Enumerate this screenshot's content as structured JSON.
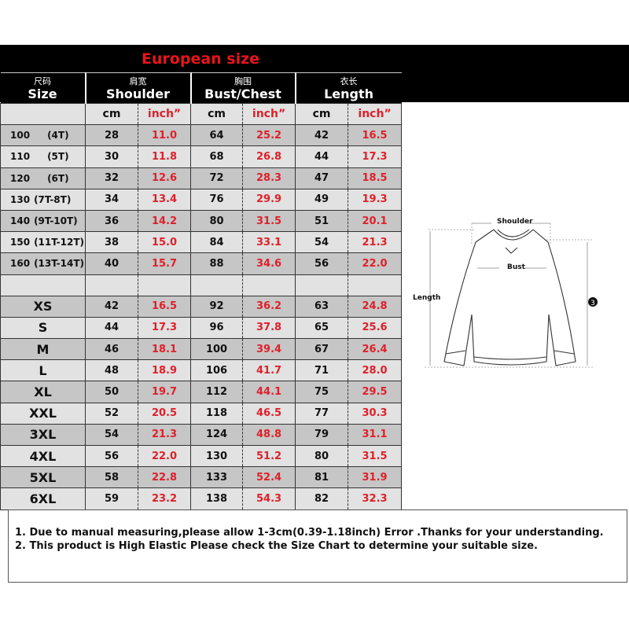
{
  "title": "European size",
  "headers": [
    {
      "cn": "尺码",
      "en": "Size"
    },
    {
      "cn": "肩宽",
      "en": "Shoulder"
    },
    {
      "cn": "胸围",
      "en": "Bust/Chest"
    },
    {
      "cn": "衣长",
      "en": "Length"
    }
  ],
  "units": {
    "cm": "cm",
    "inch": "inch”"
  },
  "kids_rows": [
    {
      "size": "100",
      "age": "(4T)",
      "shoulder_cm": "28",
      "shoulder_in": "11.0",
      "bust_cm": "64",
      "bust_in": "25.2",
      "length_cm": "42",
      "length_in": "16.5"
    },
    {
      "size": "110",
      "age": "(5T)",
      "shoulder_cm": "30",
      "shoulder_in": "11.8",
      "bust_cm": "68",
      "bust_in": "26.8",
      "length_cm": "44",
      "length_in": "17.3"
    },
    {
      "size": "120",
      "age": "(6T)",
      "shoulder_cm": "32",
      "shoulder_in": "12.6",
      "bust_cm": "72",
      "bust_in": "28.3",
      "length_cm": "47",
      "length_in": "18.5"
    },
    {
      "size": "130",
      "age": "(7T-8T)",
      "shoulder_cm": "34",
      "shoulder_in": "13.4",
      "bust_cm": "76",
      "bust_in": "29.9",
      "length_cm": "49",
      "length_in": "19.3"
    },
    {
      "size": "140",
      "age": "(9T-10T)",
      "shoulder_cm": "36",
      "shoulder_in": "14.2",
      "bust_cm": "80",
      "bust_in": "31.5",
      "length_cm": "51",
      "length_in": "20.1"
    },
    {
      "size": "150",
      "age": "(11T-12T)",
      "shoulder_cm": "38",
      "shoulder_in": "15.0",
      "bust_cm": "84",
      "bust_in": "33.1",
      "length_cm": "54",
      "length_in": "21.3"
    },
    {
      "size": "160",
      "age": "(13T-14T)",
      "shoulder_cm": "40",
      "shoulder_in": "15.7",
      "bust_cm": "88",
      "bust_in": "34.6",
      "length_cm": "56",
      "length_in": "22.0"
    }
  ],
  "adult_rows": [
    {
      "size": "XS",
      "shoulder_cm": "42",
      "shoulder_in": "16.5",
      "bust_cm": "92",
      "bust_in": "36.2",
      "length_cm": "63",
      "length_in": "24.8"
    },
    {
      "size": "S",
      "shoulder_cm": "44",
      "shoulder_in": "17.3",
      "bust_cm": "96",
      "bust_in": "37.8",
      "length_cm": "65",
      "length_in": "25.6"
    },
    {
      "size": "M",
      "shoulder_cm": "46",
      "shoulder_in": "18.1",
      "bust_cm": "100",
      "bust_in": "39.4",
      "length_cm": "67",
      "length_in": "26.4"
    },
    {
      "size": "L",
      "shoulder_cm": "48",
      "shoulder_in": "18.9",
      "bust_cm": "106",
      "bust_in": "41.7",
      "length_cm": "71",
      "length_in": "28.0"
    },
    {
      "size": "XL",
      "shoulder_cm": "50",
      "shoulder_in": "19.7",
      "bust_cm": "112",
      "bust_in": "44.1",
      "length_cm": "75",
      "length_in": "29.5"
    },
    {
      "size": "XXL",
      "shoulder_cm": "52",
      "shoulder_in": "20.5",
      "bust_cm": "118",
      "bust_in": "46.5",
      "length_cm": "77",
      "length_in": "30.3"
    },
    {
      "size": "3XL",
      "shoulder_cm": "54",
      "shoulder_in": "21.3",
      "bust_cm": "124",
      "bust_in": "48.8",
      "length_cm": "79",
      "length_in": "31.1"
    },
    {
      "size": "4XL",
      "shoulder_cm": "56",
      "shoulder_in": "22.0",
      "bust_cm": "130",
      "bust_in": "51.2",
      "length_cm": "80",
      "length_in": "31.5"
    },
    {
      "size": "5XL",
      "shoulder_cm": "58",
      "shoulder_in": "22.8",
      "bust_cm": "133",
      "bust_in": "52.4",
      "length_cm": "81",
      "length_in": "31.9"
    },
    {
      "size": "6XL",
      "shoulder_cm": "59",
      "shoulder_in": "23.2",
      "bust_cm": "138",
      "bust_in": "54.3",
      "length_cm": "82",
      "length_in": "32.3"
    }
  ],
  "diagram": {
    "shoulder": "Shoulder",
    "bust": "Bust",
    "length": "Length",
    "sleeve_marker": "3"
  },
  "notes": [
    "1. Due to manual measuring,please allow 1-3cm(0.39-1.18inch) Error .Thanks for your understanding.",
    "2. This product is High Elastic Please check the Size Chart to determine your suitable size."
  ],
  "colors": {
    "header_bg": "#000000",
    "title": "#e8141b",
    "inch_values": "#e0202a",
    "row_dark": "#c6c6c6",
    "row_light": "#e2e2e2"
  }
}
